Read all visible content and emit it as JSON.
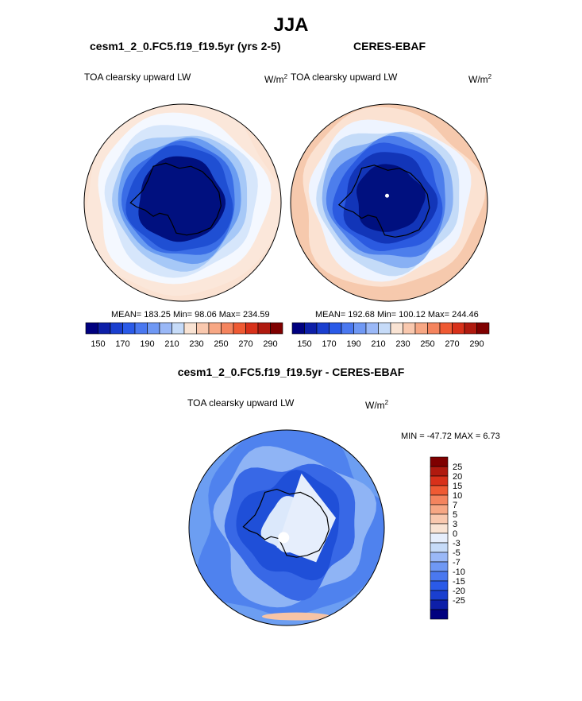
{
  "page": {
    "title": "JJA"
  },
  "panels": {
    "model": {
      "title": "cesm1_2_0.FC5.f19_f19.5yr (yrs 2-5)",
      "variable": "TOA clearsky upward LW",
      "units": "W/m",
      "units_exp": "2",
      "stats": "MEAN= 183.25  Min=  98.06  Max= 234.59"
    },
    "obs": {
      "title": "CERES-EBAF",
      "variable": "TOA clearsky upward LW",
      "units": "W/m",
      "units_exp": "2",
      "stats": "MEAN= 192.68  Min= 100.12  Max= 244.46"
    },
    "diff": {
      "title": "cesm1_2_0.FC5.f19_f19.5yr - CERES-EBAF",
      "variable": "TOA clearsky upward LW",
      "units": "W/m",
      "units_exp": "2",
      "stats": "MIN = -47.72 MAX =   6.73"
    }
  },
  "chart_data": [
    {
      "type": "heatmap",
      "projection": "south-polar-stereographic",
      "title": "cesm1_2_0.FC5.f19_f19.5yr (yrs 2-5)",
      "variable": "TOA clearsky upward LW",
      "units": "W/m2",
      "mean": 183.25,
      "min": 98.06,
      "max": 234.59,
      "colorbar": {
        "orientation": "horizontal",
        "tick_labels": [
          "150",
          "170",
          "190",
          "210",
          "230",
          "250",
          "270",
          "290"
        ],
        "colors": [
          "#00007f",
          "#0d1fa8",
          "#1a3fcf",
          "#2a5ae8",
          "#4a78f0",
          "#6f98f4",
          "#9ab8f7",
          "#c6dbf8",
          "#f9e3d3",
          "#f9c8ae",
          "#f7a784",
          "#f4845e",
          "#ef5a33",
          "#d8311a",
          "#b01a0f",
          "#7f0000"
        ]
      },
      "rings": [
        {
          "value": 255,
          "color": "#fbe7da"
        },
        {
          "value": 230,
          "color": "#f4f8ff"
        },
        {
          "value": 215,
          "color": "#d6e6fb"
        },
        {
          "value": 205,
          "color": "#a6c8f7"
        },
        {
          "value": 195,
          "color": "#6a9cf1"
        },
        {
          "value": 180,
          "color": "#3a6de6"
        },
        {
          "value": 170,
          "color": "#1f4fd3"
        },
        {
          "value": 155,
          "color": "#00107f"
        }
      ]
    },
    {
      "type": "heatmap",
      "projection": "south-polar-stereographic",
      "title": "CERES-EBAF",
      "variable": "TOA clearsky upward LW",
      "units": "W/m2",
      "mean": 192.68,
      "min": 100.12,
      "max": 244.46,
      "colorbar": {
        "orientation": "horizontal",
        "tick_labels": [
          "150",
          "170",
          "190",
          "210",
          "230",
          "250",
          "270",
          "290"
        ],
        "colors": [
          "#00007f",
          "#0d1fa8",
          "#1a3fcf",
          "#2a5ae8",
          "#4a78f0",
          "#6f98f4",
          "#9ab8f7",
          "#c6dbf8",
          "#f9e3d3",
          "#f9c8ae",
          "#f7a784",
          "#f4845e",
          "#ef5a33",
          "#d8311a",
          "#b01a0f",
          "#7f0000"
        ]
      },
      "rings": [
        {
          "value": 250,
          "color": "#f6c9ad"
        },
        {
          "value": 240,
          "color": "#fbe2d2"
        },
        {
          "value": 225,
          "color": "#eef4ff"
        },
        {
          "value": 210,
          "color": "#c4dbf8"
        },
        {
          "value": 200,
          "color": "#88b0f4"
        },
        {
          "value": 190,
          "color": "#4d7eec"
        },
        {
          "value": 180,
          "color": "#2b5ae0"
        },
        {
          "value": 165,
          "color": "#1235b8"
        },
        {
          "value": 155,
          "color": "#00107f"
        }
      ]
    },
    {
      "type": "heatmap",
      "projection": "south-polar-stereographic",
      "title": "cesm1_2_0.FC5.f19_f19.5yr - CERES-EBAF",
      "variable": "TOA clearsky upward LW",
      "units": "W/m2",
      "min": -47.72,
      "max": 6.73,
      "colorbar": {
        "orientation": "vertical",
        "tick_labels": [
          "25",
          "20",
          "15",
          "10",
          "7",
          "5",
          "3",
          "0",
          "-3",
          "-5",
          "-7",
          "-10",
          "-15",
          "-20",
          "-25"
        ],
        "colors": [
          "#7f0000",
          "#b01a0f",
          "#d8311a",
          "#ef5a33",
          "#f4845e",
          "#f7a784",
          "#f9c8ae",
          "#f9e3d3",
          "#e6eefc",
          "#c6dbf8",
          "#9ab8f7",
          "#6f98f4",
          "#4a78f0",
          "#2a5ae8",
          "#1a3fcf",
          "#0d1fa8",
          "#00007f"
        ]
      },
      "rings": [
        {
          "value": -7,
          "color": "#4f82ee"
        },
        {
          "value": -5,
          "color": "#8fb4f5"
        },
        {
          "value": -10,
          "color": "#3868e6"
        },
        {
          "value": -15,
          "color": "#1f4fd8"
        },
        {
          "value": -3,
          "color": "#dbe8fb"
        }
      ]
    }
  ]
}
